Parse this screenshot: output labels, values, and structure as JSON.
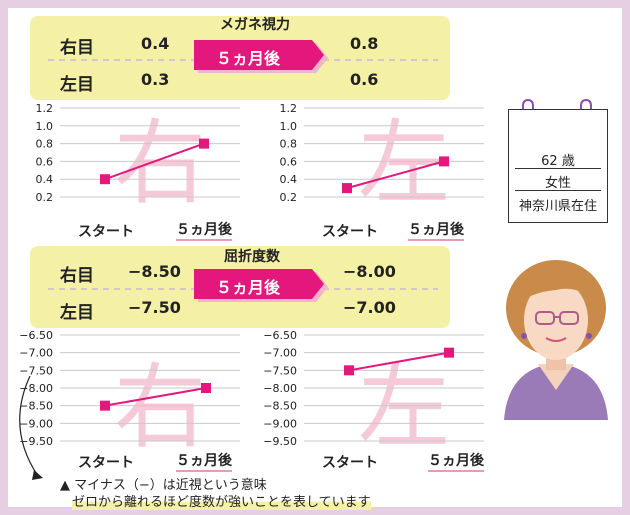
{
  "glasses": {
    "title": "メガネ視力",
    "right_label": "右目",
    "left_label": "左目",
    "right_before": "0.4",
    "left_before": "0.3",
    "arrow_label": "５ヵ月後",
    "right_after": "0.8",
    "left_after": "0.6"
  },
  "refraction": {
    "title": "屈折度数",
    "right_label": "右目",
    "left_label": "左目",
    "right_before": "−8.50",
    "left_before": "−7.50",
    "arrow_label": "５ヵ月後",
    "right_after": "−8.00",
    "left_after": "−7.00"
  },
  "chart_data": [
    {
      "type": "line",
      "watermark": "右",
      "categories": [
        "スタート",
        "５ヵ月後"
      ],
      "values": [
        0.4,
        0.8
      ],
      "yticks": [
        "1.2",
        "1.0",
        "0.8",
        "0.6",
        "0.4",
        "0.2"
      ],
      "ylim": [
        0.2,
        1.2
      ]
    },
    {
      "type": "line",
      "watermark": "左",
      "categories": [
        "スタート",
        "５ヵ月後"
      ],
      "values": [
        0.3,
        0.6
      ],
      "yticks": [
        "1.2",
        "1.0",
        "0.8",
        "0.6",
        "0.4",
        "0.2"
      ],
      "ylim": [
        0.2,
        1.2
      ]
    },
    {
      "type": "line",
      "watermark": "右",
      "categories": [
        "スタート",
        "５ヵ月後"
      ],
      "values": [
        -8.5,
        -8.0
      ],
      "yticks": [
        "−6.50",
        "−7.00",
        "−7.50",
        "−8.00",
        "−8.50",
        "−9.00",
        "−9.50"
      ],
      "ylim": [
        -9.5,
        -6.5
      ]
    },
    {
      "type": "line",
      "watermark": "左",
      "categories": [
        "スタート",
        "５ヵ月後"
      ],
      "values": [
        -7.5,
        -7.0
      ],
      "yticks": [
        "−6.50",
        "−7.00",
        "−7.50",
        "−8.00",
        "−8.50",
        "−9.00",
        "−9.50"
      ],
      "ylim": [
        -9.5,
        -6.5
      ]
    }
  ],
  "profile": {
    "age": "62 歳",
    "sex": "女性",
    "residence": "神奈川県在住"
  },
  "note": {
    "line1": "▲ マイナス（−）は近視という意味",
    "line2": "ゼロから離れるほど度数が強いことを表しています"
  },
  "colors": {
    "accent": "#e4187c",
    "panel": "#f4f1a6",
    "watermark": "#f6c9d9",
    "frame": "#e7cfe3"
  }
}
